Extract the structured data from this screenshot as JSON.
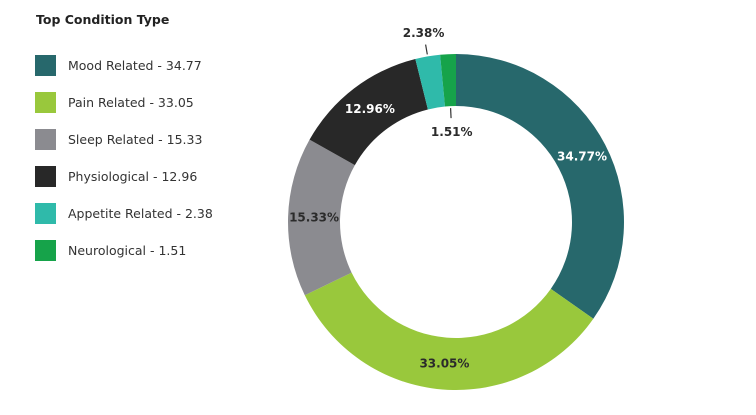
{
  "chart_data": {
    "type": "pie",
    "variant": "donut",
    "title": "Top Condition Type",
    "legend_position": "left",
    "slices": [
      {
        "name": "Mood Related",
        "value": 34.77,
        "legend": "Mood Related - 34.77",
        "label": "34.77%",
        "color": "#27686c",
        "label_color": "#ffffff"
      },
      {
        "name": "Pain Related",
        "value": 33.05,
        "legend": "Pain Related - 33.05",
        "label": "33.05%",
        "color": "#99c83c",
        "label_color": "#2b2b2b"
      },
      {
        "name": "Sleep Related",
        "value": 15.33,
        "legend": "Sleep Related - 15.33",
        "label": "15.33%",
        "color": "#8b8b90",
        "label_color": "#2b2b2b"
      },
      {
        "name": "Physiological",
        "value": 12.96,
        "legend": "Physiological - 12.96",
        "label": "12.96%",
        "color": "#282828",
        "label_color": "#ffffff"
      },
      {
        "name": "Appetite Related",
        "value": 2.38,
        "legend": "Appetite Related - 2.38",
        "label": "2.38%",
        "color": "#2fbaaa",
        "label_color": "#2b2b2b"
      },
      {
        "name": "Neurological",
        "value": 1.51,
        "legend": "Neurological - 1.51",
        "label": "1.51%",
        "color": "#16a34a",
        "label_color": "#2b2b2b"
      }
    ]
  }
}
